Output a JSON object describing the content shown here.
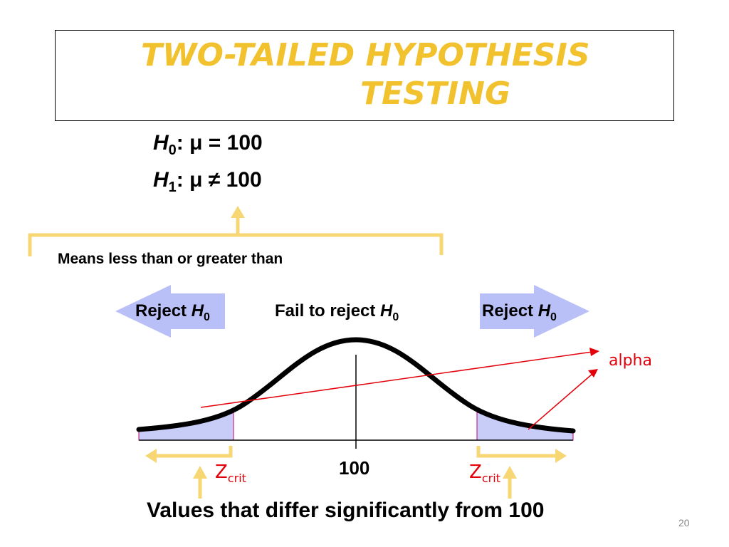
{
  "title": {
    "line1": "TWO-TAILED HYPOTHESIS",
    "line2": "TESTING"
  },
  "hypotheses": {
    "h0": {
      "letter": "H",
      "sub": "0",
      "rest": ": μ = 100"
    },
    "h1": {
      "letter": "H",
      "sub": "1",
      "rest": ": μ ≠ 100"
    }
  },
  "bracket_note": "Means less than or greater than",
  "regions": {
    "reject_left": {
      "text": "Reject ",
      "letter": "H",
      "sub": "0"
    },
    "fail": {
      "text": "Fail to reject ",
      "letter": "H",
      "sub": "0"
    },
    "reject_right": {
      "text": "Reject ",
      "letter": "H",
      "sub": "0"
    }
  },
  "alpha_label": "alpha",
  "zcrit": {
    "main": "Z",
    "sub": "crit"
  },
  "center_value": "100",
  "bottom_caption": "Values that differ significantly from 100",
  "page_number": "20",
  "colors": {
    "title": "#f2c12e",
    "bracket": "#f7d774",
    "reject_arrow": "#b8c0f7",
    "tail_fill": "#c7cdf7",
    "red_annotation": "#e3000b"
  }
}
